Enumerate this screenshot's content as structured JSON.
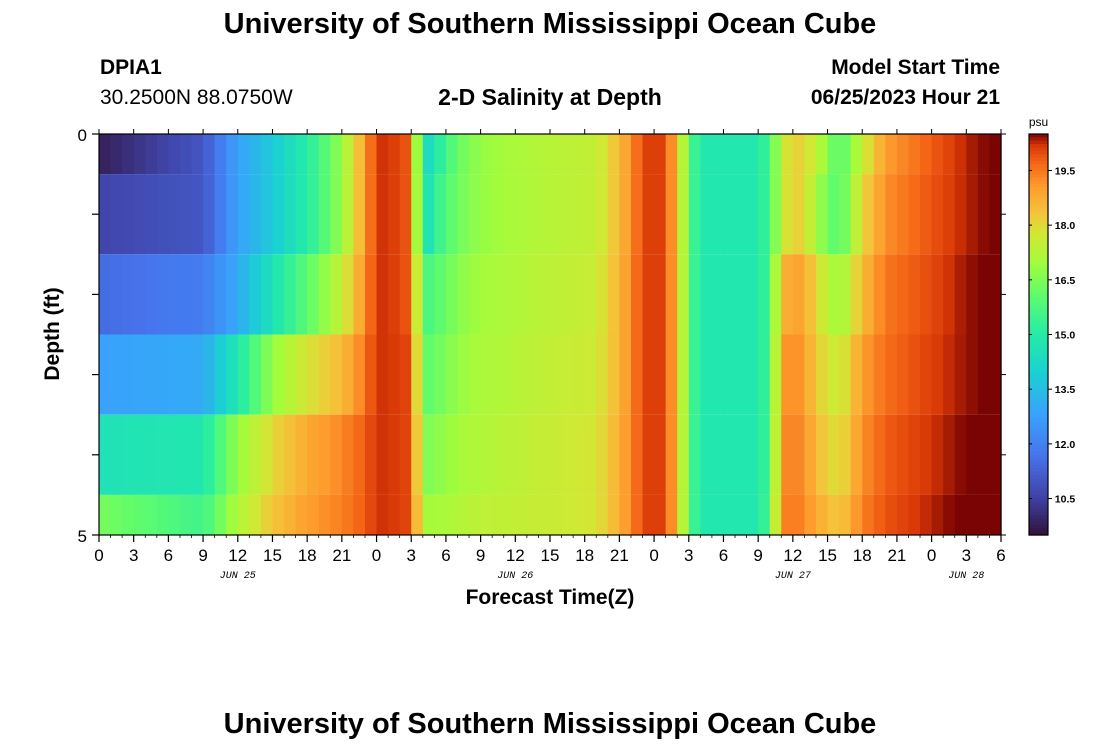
{
  "header": {
    "title": "University of Southern Mississippi Ocean Cube",
    "station_id": "DPIA1",
    "station_coords": "30.2500N  88.0750W",
    "plot_title": "2-D Salinity at Depth",
    "model_start_label": "Model Start Time",
    "model_start_value": "06/25/2023 Hour 21"
  },
  "footer": {
    "title": "University of Southern Mississippi Ocean Cube"
  },
  "chart_data": {
    "type": "heatmap",
    "title": "2-D Salinity at Depth",
    "xlabel": "Forecast Time(Z)",
    "ylabel": "Depth (ft)",
    "ylim": [
      0,
      5
    ],
    "y_ticks": [
      "0",
      "5"
    ],
    "x_hours_range": [
      0,
      78
    ],
    "x_tick_labels": [
      "0",
      "3",
      "6",
      "9",
      "12",
      "15",
      "18",
      "21",
      "0",
      "3",
      "6",
      "9",
      "12",
      "15",
      "18",
      "21",
      "0",
      "3",
      "6",
      "9",
      "12",
      "15",
      "18",
      "21",
      "0",
      "3",
      "6"
    ],
    "date_labels": [
      {
        "hour": 12,
        "text": "JUN 25"
      },
      {
        "hour": 36,
        "text": "JUN 26"
      },
      {
        "hour": 60,
        "text": "JUN 27"
      },
      {
        "hour": 75,
        "text": "JUN 28"
      }
    ],
    "colorbar": {
      "unit": "psu",
      "min": 9.5,
      "max": 20.5,
      "tick_labels": [
        "19.5",
        "18.0",
        "16.5",
        "15.0",
        "13.5",
        "12.0",
        "10.5"
      ]
    },
    "depth_layer_bounds": [
      0,
      0.5,
      1.5,
      2.5,
      3.5,
      4.5,
      5
    ],
    "time_knots": [
      0,
      9,
      12,
      15,
      18,
      21,
      23,
      24,
      25,
      27,
      28,
      29,
      30,
      31,
      33,
      36,
      39,
      43,
      45,
      46,
      47,
      48,
      49,
      50,
      51,
      52,
      57,
      58,
      59,
      60,
      61,
      62,
      64,
      66,
      68,
      72,
      75,
      78
    ],
    "salinity_layers": [
      [
        9.8,
        11.0,
        12.8,
        13.8,
        15.0,
        16.8,
        19.0,
        20.2,
        20.2,
        19.8,
        14.0,
        14.8,
        15.5,
        16.2,
        16.8,
        17.1,
        17.3,
        17.5,
        18.5,
        19.2,
        20.0,
        20.2,
        20.0,
        18.5,
        16.0,
        14.8,
        14.8,
        15.6,
        17.5,
        18.2,
        18.0,
        17.5,
        15.8,
        17.5,
        19.0,
        19.8,
        20.3,
        20.6
      ],
      [
        10.6,
        11.0,
        12.8,
        13.8,
        15.0,
        16.8,
        19.0,
        20.2,
        20.2,
        19.8,
        14.2,
        15.2,
        15.8,
        16.3,
        16.8,
        17.1,
        17.3,
        17.5,
        18.5,
        19.2,
        20.0,
        20.2,
        20.0,
        18.5,
        16.0,
        14.8,
        14.8,
        15.6,
        17.5,
        18.2,
        18.0,
        17.0,
        15.8,
        18.0,
        19.2,
        19.9,
        20.3,
        20.6
      ],
      [
        11.5,
        11.9,
        13.0,
        14.6,
        16.0,
        17.5,
        19.2,
        20.2,
        20.2,
        19.8,
        15.5,
        15.9,
        16.2,
        16.6,
        17.0,
        17.2,
        17.4,
        17.6,
        18.6,
        19.3,
        20.0,
        20.2,
        20.0,
        18.5,
        16.0,
        14.8,
        14.8,
        15.6,
        18.5,
        19.0,
        18.8,
        18.0,
        16.8,
        18.5,
        19.5,
        20.0,
        20.4,
        20.6
      ],
      [
        12.8,
        13.0,
        14.8,
        16.8,
        17.8,
        18.5,
        19.5,
        20.2,
        20.2,
        20.0,
        16.0,
        16.2,
        16.5,
        16.8,
        17.1,
        17.3,
        17.5,
        17.7,
        18.6,
        19.3,
        20.0,
        20.2,
        20.0,
        18.5,
        16.0,
        14.8,
        14.8,
        15.6,
        19.0,
        19.3,
        19.0,
        18.2,
        17.5,
        19.0,
        19.6,
        20.1,
        20.4,
        20.6
      ],
      [
        14.6,
        14.8,
        16.8,
        18.0,
        18.8,
        19.3,
        19.8,
        20.2,
        20.2,
        20.0,
        16.5,
        16.6,
        16.8,
        17.0,
        17.2,
        17.4,
        17.6,
        17.8,
        18.7,
        19.3,
        20.0,
        20.2,
        20.0,
        18.5,
        16.0,
        14.8,
        14.8,
        15.6,
        19.2,
        19.4,
        19.2,
        18.5,
        17.8,
        19.2,
        19.8,
        20.2,
        20.5,
        20.7
      ],
      [
        16.4,
        15.5,
        17.2,
        18.3,
        19.0,
        19.4,
        19.8,
        20.2,
        20.2,
        20.0,
        17.0,
        17.0,
        17.1,
        17.2,
        17.4,
        17.5,
        17.6,
        17.8,
        18.7,
        19.3,
        20.0,
        20.2,
        20.0,
        18.5,
        16.0,
        14.8,
        14.8,
        15.8,
        19.3,
        19.5,
        19.3,
        18.8,
        18.2,
        19.4,
        19.9,
        20.3,
        20.6,
        20.8
      ]
    ]
  }
}
